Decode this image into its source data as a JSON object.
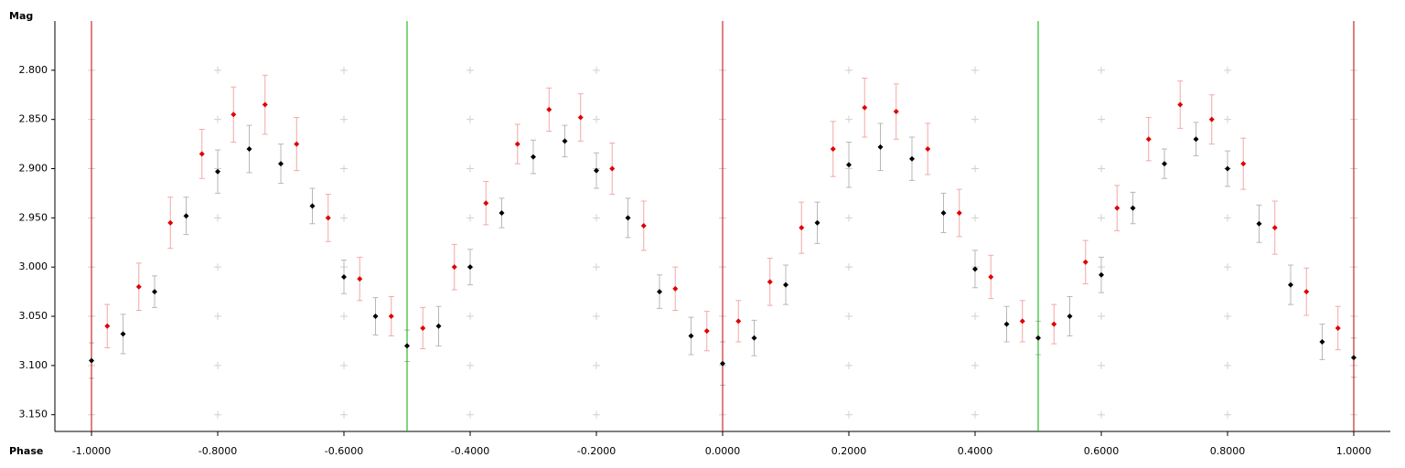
{
  "chart_data": {
    "type": "scatter",
    "x_label": "Phase",
    "y_label": "Mag",
    "xlim": [
      -1.058,
      1.058
    ],
    "ylim": [
      2.75,
      3.167
    ],
    "y_inverted": true,
    "xticks": [
      {
        "value": -1,
        "label": "-1.0000"
      },
      {
        "value": -0.8,
        "label": "-0.8000"
      },
      {
        "value": -0.6,
        "label": "-0.6000"
      },
      {
        "value": -0.4,
        "label": "-0.4000"
      },
      {
        "value": -0.2,
        "label": "-0.2000"
      },
      {
        "value": 0,
        "label": "0.0000"
      },
      {
        "value": 0.2,
        "label": "0.2000"
      },
      {
        "value": 0.4,
        "label": "0.4000"
      },
      {
        "value": 0.6,
        "label": "0.6000"
      },
      {
        "value": 0.8,
        "label": "0.8000"
      },
      {
        "value": 1,
        "label": "1.0000"
      }
    ],
    "yticks": [
      {
        "value": 2.8,
        "label": "2.800"
      },
      {
        "value": 2.85,
        "label": "2.850"
      },
      {
        "value": 2.9,
        "label": "2.900"
      },
      {
        "value": 2.95,
        "label": "2.950"
      },
      {
        "value": 3,
        "label": "3.000"
      },
      {
        "value": 3.05,
        "label": "3.050"
      },
      {
        "value": 3.1,
        "label": "3.100"
      },
      {
        "value": 3.15,
        "label": "3.150"
      }
    ],
    "grid": true,
    "grid_color": "#d0d0d0",
    "phase_lines": [
      {
        "value": -1,
        "color": "#c00000"
      },
      {
        "value": -0.5,
        "color": "#00b000"
      },
      {
        "value": 0,
        "color": "#c00000"
      },
      {
        "value": 0.5,
        "color": "#00b000"
      },
      {
        "value": 1,
        "color": "#c00000"
      }
    ],
    "series": [
      {
        "color": "#000000",
        "error_color": "#b8b8b8",
        "x": [
          -1,
          -0.95,
          -0.9,
          -0.85,
          -0.8,
          -0.75,
          -0.7,
          -0.65,
          -0.6,
          -0.55,
          -0.5,
          -0.45,
          -0.4,
          -0.35,
          -0.3,
          -0.25,
          -0.2,
          -0.15,
          -0.1,
          -0.05,
          0,
          0.05,
          0.1,
          0.15,
          0.2,
          0.25,
          0.3,
          0.35,
          0.4,
          0.45,
          0.5,
          0.55,
          0.6,
          0.65,
          0.7,
          0.75,
          0.8,
          0.85,
          0.9,
          0.95,
          1
        ],
        "values": [
          3.095,
          3.068,
          3.025,
          2.948,
          2.903,
          2.88,
          2.895,
          2.938,
          3.01,
          3.05,
          3.08,
          3.06,
          3,
          2.945,
          2.888,
          2.872,
          2.902,
          2.95,
          3.025,
          3.07,
          3.098,
          3.072,
          3.018,
          2.955,
          2.896,
          2.878,
          2.89,
          2.945,
          3.002,
          3.058,
          3.072,
          3.05,
          3.008,
          2.94,
          2.895,
          2.87,
          2.9,
          2.956,
          3.018,
          3.076,
          3.092
        ],
        "errors": [
          0.018,
          0.02,
          0.016,
          0.019,
          0.022,
          0.024,
          0.02,
          0.018,
          0.017,
          0.019,
          0.016,
          0.02,
          0.018,
          0.015,
          0.017,
          0.016,
          0.018,
          0.02,
          0.017,
          0.019,
          0.022,
          0.018,
          0.02,
          0.021,
          0.023,
          0.024,
          0.022,
          0.02,
          0.019,
          0.018,
          0.017,
          0.02,
          0.018,
          0.016,
          0.015,
          0.017,
          0.018,
          0.019,
          0.02,
          0.018,
          0.02
        ]
      },
      {
        "color": "#e00000",
        "error_color": "#f4a8a8",
        "x": [
          -0.975,
          -0.925,
          -0.875,
          -0.825,
          -0.775,
          -0.725,
          -0.675,
          -0.625,
          -0.575,
          -0.525,
          -0.475,
          -0.425,
          -0.375,
          -0.325,
          -0.275,
          -0.225,
          -0.175,
          -0.125,
          -0.075,
          -0.025,
          0.025,
          0.075,
          0.125,
          0.175,
          0.225,
          0.275,
          0.325,
          0.375,
          0.425,
          0.475,
          0.525,
          0.575,
          0.625,
          0.675,
          0.725,
          0.775,
          0.825,
          0.875,
          0.925,
          0.975
        ],
        "values": [
          3.06,
          3.02,
          2.955,
          2.885,
          2.845,
          2.835,
          2.875,
          2.95,
          3.012,
          3.05,
          3.062,
          3,
          2.935,
          2.875,
          2.84,
          2.848,
          2.9,
          2.958,
          3.022,
          3.065,
          3.055,
          3.015,
          2.96,
          2.88,
          2.838,
          2.842,
          2.88,
          2.945,
          3.01,
          3.055,
          3.058,
          2.995,
          2.94,
          2.87,
          2.835,
          2.85,
          2.895,
          2.96,
          3.025,
          3.062
        ],
        "errors": [
          0.022,
          0.024,
          0.026,
          0.025,
          0.028,
          0.03,
          0.027,
          0.024,
          0.022,
          0.02,
          0.021,
          0.023,
          0.022,
          0.02,
          0.022,
          0.024,
          0.026,
          0.025,
          0.022,
          0.02,
          0.021,
          0.024,
          0.026,
          0.028,
          0.03,
          0.028,
          0.026,
          0.024,
          0.022,
          0.021,
          0.02,
          0.022,
          0.023,
          0.022,
          0.024,
          0.025,
          0.026,
          0.027,
          0.024,
          0.022
        ]
      }
    ]
  }
}
